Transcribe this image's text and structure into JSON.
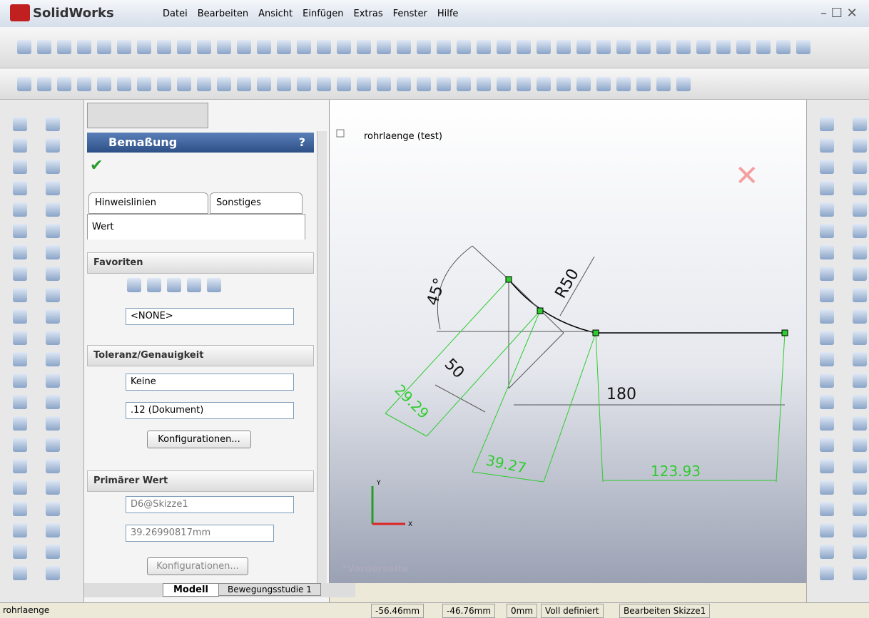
{
  "app": {
    "logo": "SolidWorks",
    "menu": [
      "Datei",
      "Bearbeiten",
      "Ansicht",
      "Einfügen",
      "Extras",
      "Fenster",
      "Hilfe"
    ]
  },
  "property_manager": {
    "title": "Bemaßung",
    "help": "?",
    "tabs": [
      "Hinweislinien",
      "Sonstiges",
      "Wert"
    ],
    "favorites": {
      "title": "Favoriten",
      "select": "<NONE>"
    },
    "tolerance": {
      "title": "Toleranz/Genauigkeit",
      "tolerance_select": "Keine",
      "precision_select": ".12 (Dokument)",
      "button": "Konfigurationen..."
    },
    "primary_value": {
      "title": "Primärer Wert",
      "name": "D6@Skizze1",
      "value": "39.26990817mm",
      "button": "Konfigurationen..."
    }
  },
  "bottom_tabs": [
    "Modell",
    "Bewegungsstudie 1"
  ],
  "feature_tree": {
    "root": "rohrlaenge (test)"
  },
  "sketch": {
    "dimensions": [
      "45°",
      "R50",
      "50",
      "180",
      "29.29",
      "39.27",
      "123.93"
    ],
    "triad": {
      "y": "Y",
      "x": "X"
    },
    "view_name": "*Vorderseite"
  },
  "status_bar": {
    "document": "rohrlaenge",
    "x": "-56.46mm",
    "y": "-46.76mm",
    "z": "0mm",
    "state": "Voll definiert",
    "mode": "Bearbeiten Skizze1"
  }
}
